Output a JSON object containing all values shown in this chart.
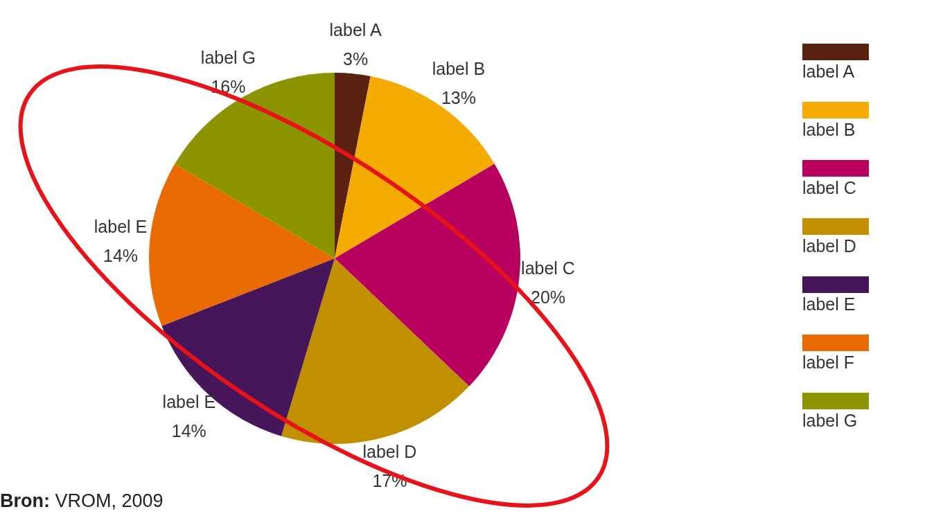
{
  "chart_data": {
    "type": "pie",
    "categories": [
      "label A",
      "label B",
      "label C",
      "label D",
      "label E",
      "label F",
      "label G"
    ],
    "values": [
      3,
      13,
      20,
      17,
      14,
      14,
      16
    ],
    "colors": [
      "#5a2010",
      "#f5ab00",
      "#b8005e",
      "#c09000",
      "#47155a",
      "#e86a00",
      "#8c9400"
    ],
    "value_labels": [
      "label A\n3%",
      "label B\n13%",
      "label C\n20%",
      "label D\n17%",
      "label E\n14%",
      "label E\n14%",
      "label G\n16%"
    ],
    "legend": "right",
    "annotations": [
      "Bron: VROM, 2009"
    ]
  }
}
